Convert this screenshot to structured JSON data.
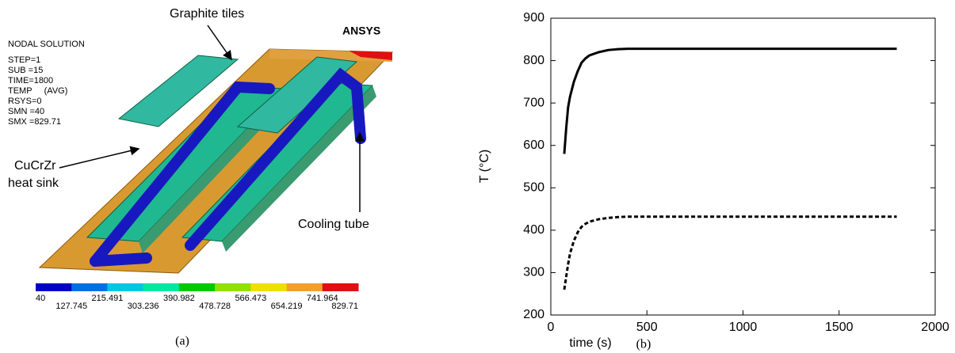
{
  "figure_a": {
    "info": [
      "NODAL SOLUTION",
      "STEP=1",
      "SUB =15",
      "TIME=1800",
      "TEMP     (AVG)",
      "RSYS=0",
      "SMN =40",
      "SMX =829.71"
    ],
    "logo": "ANSYS",
    "annotations": {
      "tiles": "Graphite tiles",
      "sink_1": "CuCrZr",
      "sink_2": "heat sink",
      "tube": "Cooling tube"
    },
    "colorbar": {
      "values": [
        40,
        127.745,
        215.491,
        303.236,
        390.982,
        478.728,
        566.473,
        654.219,
        741.964,
        829.71
      ],
      "colors": [
        "#0000c8",
        "#0070e0",
        "#00c8e0",
        "#00e8a0",
        "#00c800",
        "#90e000",
        "#f0e000",
        "#f0a030",
        "#e01010"
      ]
    },
    "caption": "(a)"
  },
  "chart_data": {
    "type": "line",
    "caption": "(b)",
    "xlabel": "time (s)",
    "ylabel": "T (°C)",
    "x": [
      70,
      80,
      90,
      100,
      120,
      140,
      160,
      180,
      200,
      250,
      300,
      350,
      400,
      500,
      1000,
      1500,
      1800
    ],
    "series": [
      {
        "color": "#000000",
        "style": "solid",
        "values": [
          580,
          640,
          690,
          715,
          750,
          775,
          795,
          805,
          812,
          820,
          825,
          827,
          828,
          828,
          828,
          828,
          828
        ]
      },
      {
        "color": "#000000",
        "style": "dashed",
        "values": [
          260,
          290,
          320,
          345,
          375,
          395,
          408,
          415,
          420,
          426,
          429,
          431,
          432,
          432,
          432,
          432,
          432
        ]
      }
    ],
    "xlim": [
      0,
      2000
    ],
    "xticks": [
      0,
      500,
      1000,
      1500,
      2000
    ],
    "ylim": [
      200,
      900
    ],
    "yticks": [
      200,
      300,
      400,
      500,
      600,
      700,
      800,
      900
    ]
  }
}
